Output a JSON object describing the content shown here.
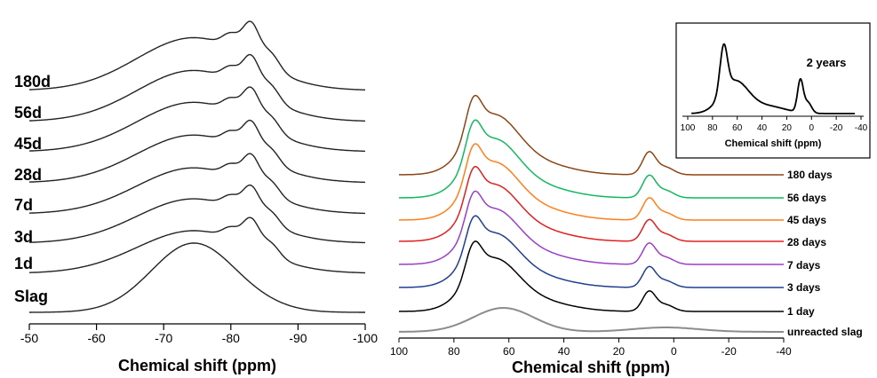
{
  "chart_data": [
    {
      "type": "line",
      "title": "",
      "xlabel": "Chemical shift (ppm)",
      "ylabel": "",
      "xlim": [
        -50,
        -100
      ],
      "x_ticks": [
        "-50",
        "-60",
        "-70",
        "-80",
        "-90",
        "-100"
      ],
      "series": [
        {
          "name": "Slag"
        },
        {
          "name": "1d"
        },
        {
          "name": "3d"
        },
        {
          "name": "7d"
        },
        {
          "name": "28d"
        },
        {
          "name": "45d"
        },
        {
          "name": "56d"
        },
        {
          "name": "180d"
        }
      ],
      "notes": "stacked spectra; Slag is a broad peak near -74.5 ppm; 1d-180d show peaks near -80 and -83 ppm with a shoulder near -86 ppm"
    },
    {
      "type": "line",
      "title": "",
      "xlabel": "Chemical shift (ppm)",
      "ylabel": "",
      "xlim": [
        100,
        -40
      ],
      "x_ticks": [
        "100",
        "80",
        "60",
        "40",
        "20",
        "0",
        "-20",
        "-40"
      ],
      "series": [
        {
          "name": "unreacted slag",
          "color": "#8c8c8c"
        },
        {
          "name": "1 day",
          "color": "#000000"
        },
        {
          "name": "3 days",
          "color": "#1f3f8f"
        },
        {
          "name": "7 days",
          "color": "#9b3fc4"
        },
        {
          "name": "28 days",
          "color": "#e0201f"
        },
        {
          "name": "45 days",
          "color": "#ff7f1a"
        },
        {
          "name": "56 days",
          "color": "#12b860"
        },
        {
          "name": "180 days",
          "color": "#8b4513"
        }
      ],
      "notes": "stacked spectra; unreacted slag broad peak near 62 ppm; other series peaks near 73, 67 and 9 ppm"
    },
    {
      "type": "line",
      "title": "",
      "annotation": "2 years",
      "xlabel": "Chemical shift (ppm)",
      "xlim": [
        100,
        -40
      ],
      "x_ticks": [
        "100",
        "80",
        "60",
        "40",
        "20",
        "0",
        "-20",
        "-40"
      ],
      "series": [
        {
          "name": ""
        }
      ],
      "notes": "inset; main peak near 71 ppm, second peak near 9 ppm"
    }
  ]
}
